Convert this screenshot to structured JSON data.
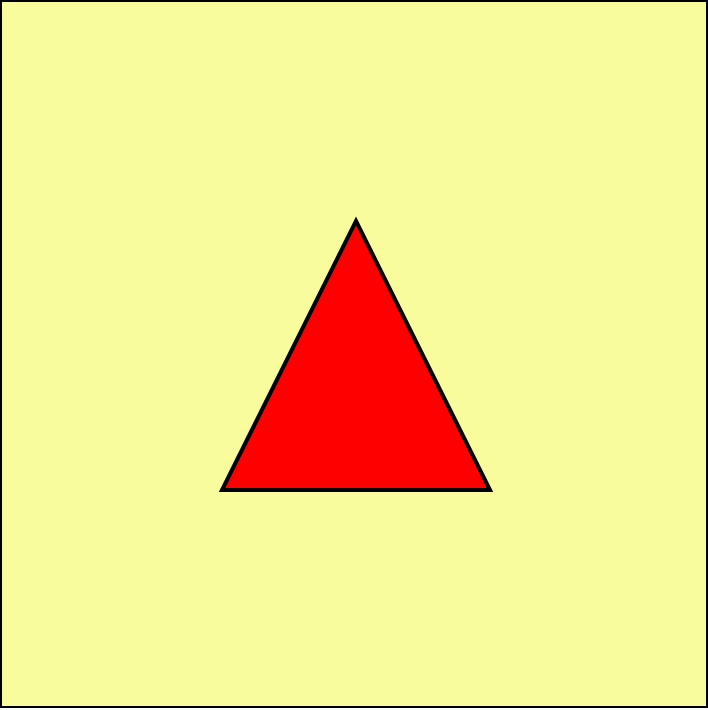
{
  "canvas": {
    "background_color": "#f8fc9c",
    "border_color": "#000000"
  },
  "shapes": [
    {
      "kind": "triangle",
      "fill_color": "#ff0000",
      "stroke_color": "#000000"
    }
  ]
}
